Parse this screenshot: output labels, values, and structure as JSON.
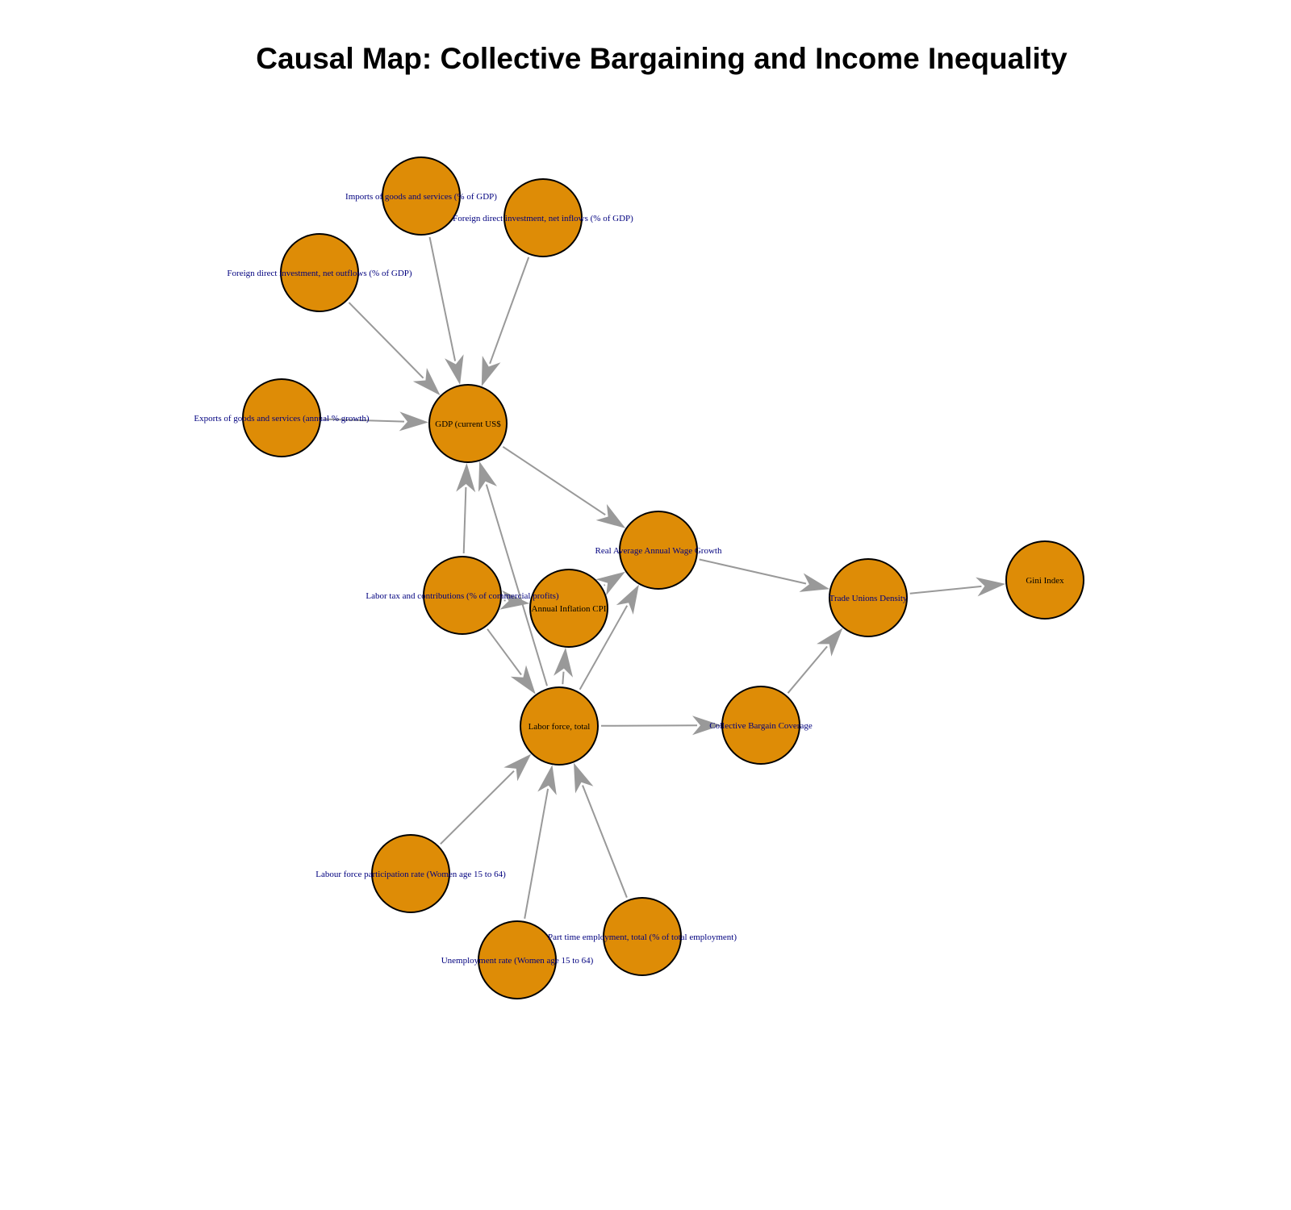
{
  "title": "Causal Map: Collective Bargaining and Income Inequality",
  "style": {
    "node_fill": "#DE8C06",
    "node_stroke": "#000000",
    "edge_color": "#999999",
    "label_color_external": "#00007F",
    "label_color_internal": "#000000"
  },
  "nodes": [
    {
      "id": "imports",
      "label": "Imports of goods and services (% of GDP)"
    },
    {
      "id": "fdi_in",
      "label": "Foreign direct investment, net inflows (% of GDP)"
    },
    {
      "id": "fdi_out",
      "label": "Foreign direct investment, net outflows (% of GDP)"
    },
    {
      "id": "exports",
      "label": "Exports of goods and services (annual % growth)"
    },
    {
      "id": "gdp",
      "label": "GDP (current US$"
    },
    {
      "id": "wage",
      "label": "Real Average Annual Wage Growth"
    },
    {
      "id": "labtax",
      "label": "Labor tax and contributions (% of commercial profits)"
    },
    {
      "id": "infl",
      "label": "Annual Inflation CPI"
    },
    {
      "id": "tud",
      "label": "Trade Unions Density"
    },
    {
      "id": "gini",
      "label": "Gini Index"
    },
    {
      "id": "lf",
      "label": "Labor force, total"
    },
    {
      "id": "cbc",
      "label": "Collective Bargain Coverage"
    },
    {
      "id": "lfpr",
      "label": "Labour force participation rate (Women age 15 to 64)"
    },
    {
      "id": "ptime",
      "label": "Part time employment, total (% of total employment)"
    },
    {
      "id": "unemp",
      "label": "Unemployment rate (Women age 15 to 64)"
    }
  ],
  "edges": [
    {
      "from": "imports",
      "to": "gdp"
    },
    {
      "from": "fdi_in",
      "to": "gdp"
    },
    {
      "from": "fdi_out",
      "to": "gdp"
    },
    {
      "from": "exports",
      "to": "gdp"
    },
    {
      "from": "labtax",
      "to": "gdp"
    },
    {
      "from": "lf",
      "to": "gdp"
    },
    {
      "from": "gdp",
      "to": "wage"
    },
    {
      "from": "infl",
      "to": "wage"
    },
    {
      "from": "lf",
      "to": "wage"
    },
    {
      "from": "labtax",
      "to": "infl"
    },
    {
      "from": "labtax",
      "to": "lf"
    },
    {
      "from": "lf",
      "to": "infl"
    },
    {
      "from": "wage",
      "to": "tud"
    },
    {
      "from": "tud",
      "to": "gini"
    },
    {
      "from": "cbc",
      "to": "tud"
    },
    {
      "from": "lf",
      "to": "cbc"
    },
    {
      "from": "lfpr",
      "to": "lf"
    },
    {
      "from": "unemp",
      "to": "lf"
    },
    {
      "from": "ptime",
      "to": "lf"
    }
  ]
}
